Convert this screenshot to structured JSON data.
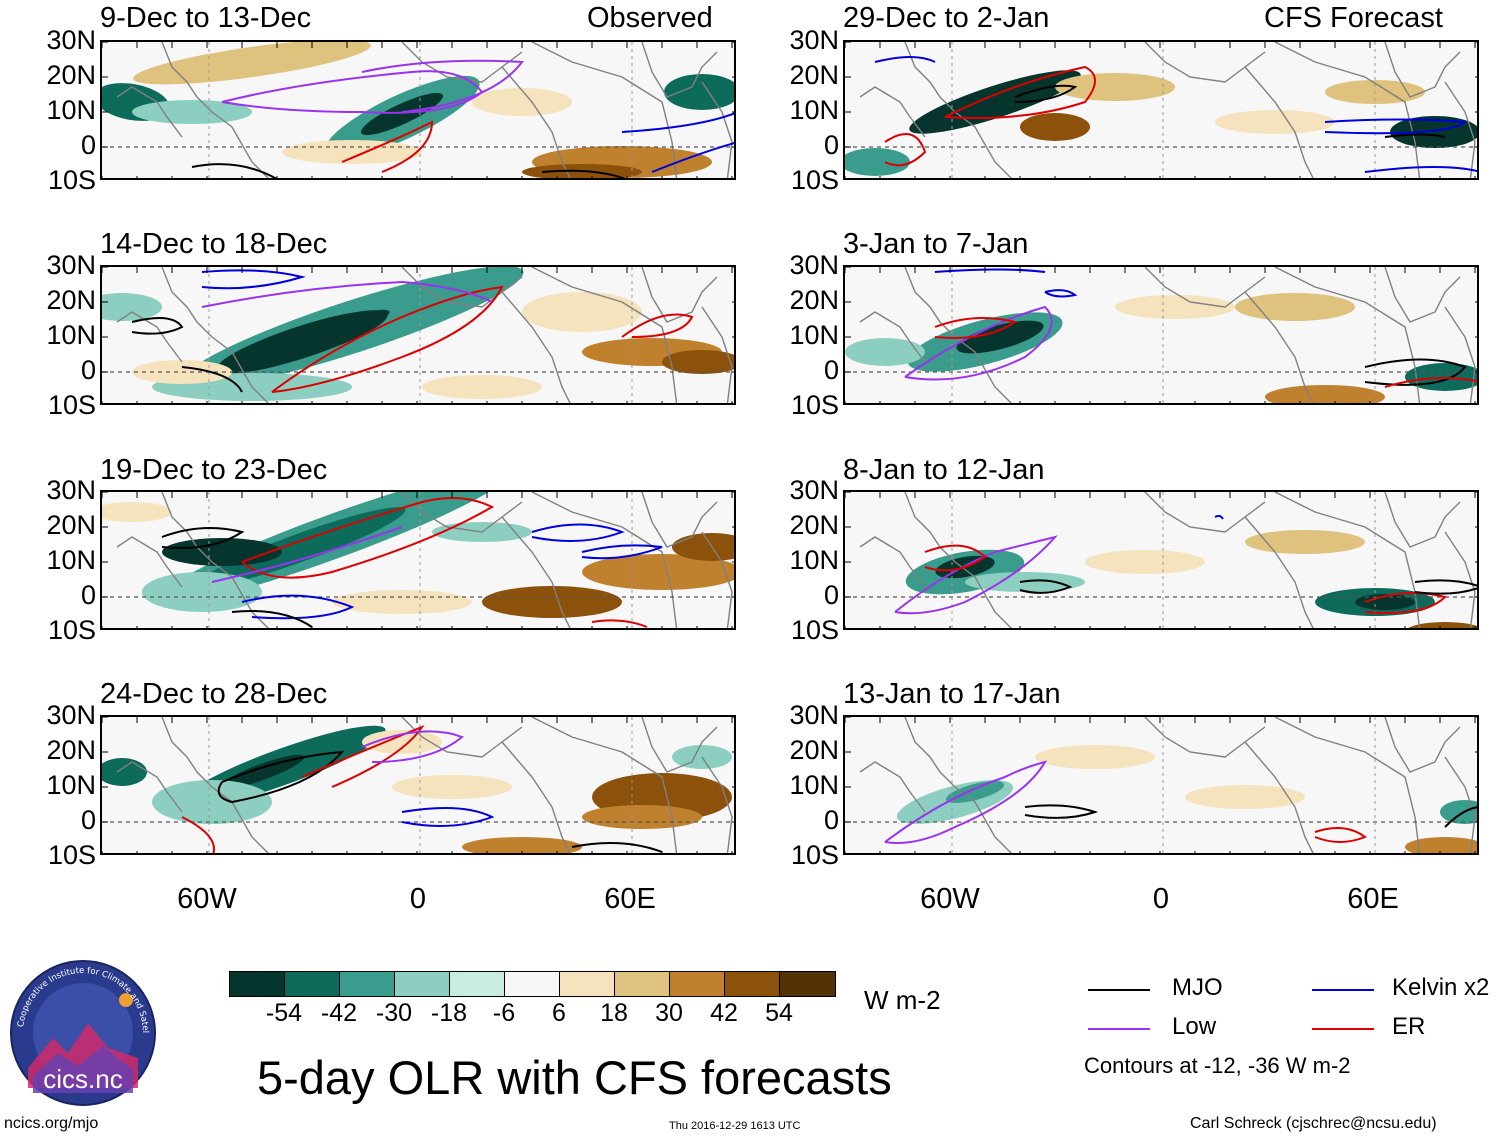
{
  "left_column": {
    "header_right": "Observed",
    "panels": [
      {
        "title": "9-Dec to 13-Dec"
      },
      {
        "title": "14-Dec to 18-Dec"
      },
      {
        "title": "19-Dec to 23-Dec"
      },
      {
        "title": "24-Dec to 28-Dec"
      }
    ]
  },
  "right_column": {
    "header_right": "CFS Forecast",
    "panels": [
      {
        "title": "29-Dec to 2-Jan"
      },
      {
        "title": "3-Jan to 7-Jan"
      },
      {
        "title": "8-Jan to 12-Jan"
      },
      {
        "title": "13-Jan to 17-Jan"
      }
    ]
  },
  "axes": {
    "lat_labels": [
      "30N",
      "20N",
      "10N",
      "0",
      "10S"
    ],
    "lon_labels": [
      "60W",
      "0",
      "60E"
    ]
  },
  "colorbar": {
    "unit": "W m-2",
    "tick_labels": [
      "-54",
      "-42",
      "-30",
      "-18",
      "-6",
      "6",
      "18",
      "30",
      "42",
      "54"
    ],
    "colors": [
      "#06352d",
      "#0d6b5b",
      "#3a9c8c",
      "#8ccfc0",
      "#c8ebe2",
      "#f7f7f7",
      "#f5e3bd",
      "#dfc27d",
      "#bf812d",
      "#8c510a",
      "#543005"
    ]
  },
  "legend": {
    "items": [
      {
        "label": "MJO",
        "color": "#000000"
      },
      {
        "label": "Kelvin x2",
        "color": "#0000dd"
      },
      {
        "label": "Low",
        "color": "#9933ee"
      },
      {
        "label": "ER",
        "color": "#dd0000"
      }
    ],
    "note": "Contours at -12, -36 W m-2"
  },
  "main_title": "5-day OLR with CFS forecasts",
  "footer": {
    "left": "ncics.org/mjo",
    "center": "Thu 2016-12-29 1613 UTC",
    "right": "Carl Schreck (cjschrec@ncsu.edu)"
  },
  "logo": {
    "text": "cics.nc",
    "ring_text": "Cooperative Institute for Climate and Satellites"
  }
}
